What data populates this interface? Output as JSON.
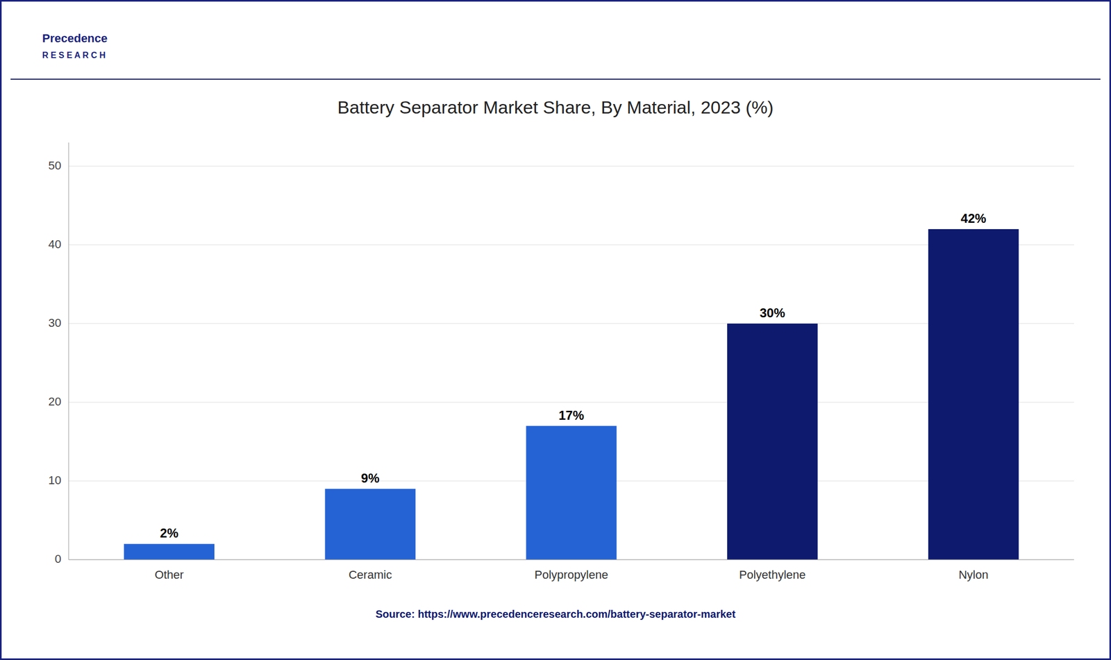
{
  "chart_data": {
    "type": "bar",
    "title": "Battery Separator Market Share, By Material, 2023 (%)",
    "categories": [
      "Other",
      "Ceramic",
      "Polypropylene",
      "Polyethylene",
      "Nylon"
    ],
    "values": [
      2,
      9,
      17,
      30,
      42
    ],
    "value_labels": [
      "2%",
      "9%",
      "17%",
      "30%",
      "42%"
    ],
    "colors": [
      "#2563d4",
      "#2563d4",
      "#2563d4",
      "#0d1a6e",
      "#0d1a6e"
    ],
    "ylim": [
      0,
      53
    ],
    "yticks": [
      0,
      10,
      20,
      30,
      40,
      50
    ],
    "grid": true,
    "data_labels": true,
    "annotations": [
      "Precedence",
      "R E S E A R C H",
      "Source: https://www.precedenceresearch.com/battery-separator-market"
    ]
  }
}
